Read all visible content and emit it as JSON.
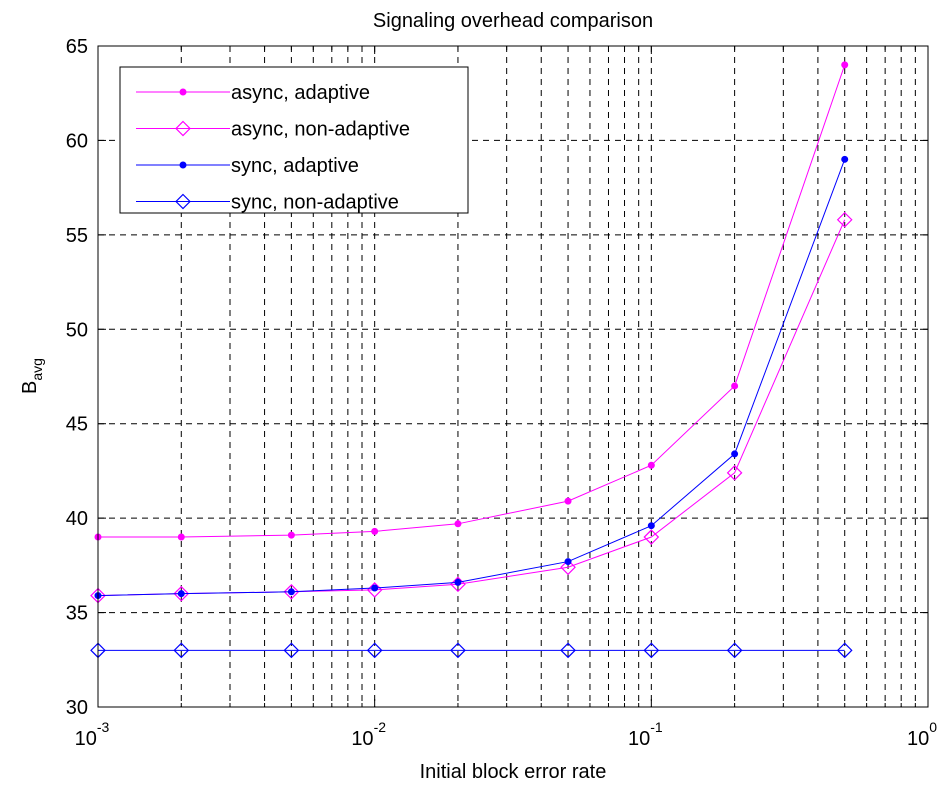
{
  "chart_data": {
    "type": "line",
    "title": "Signaling overhead comparison",
    "xlabel": "Initial block error rate",
    "ylabel": "B",
    "ylabel_sub": "avg",
    "x_scale": "log",
    "xlim": [
      0.001,
      1
    ],
    "ylim": [
      30,
      65
    ],
    "yticks": [
      30,
      35,
      40,
      45,
      50,
      55,
      60,
      65
    ],
    "xticks": [
      {
        "base": "10",
        "exp": "-3"
      },
      {
        "base": "10",
        "exp": "-2"
      },
      {
        "base": "10",
        "exp": "-1"
      },
      {
        "base": "10",
        "exp": "0"
      }
    ],
    "grid": true,
    "legend_position": "top-left",
    "x": [
      0.001,
      0.002,
      0.005,
      0.01,
      0.02,
      0.05,
      0.1,
      0.2,
      0.5
    ],
    "series": [
      {
        "name": "async, adaptive",
        "color": "#ff00ff",
        "marker": "dot",
        "values": [
          39.0,
          39.0,
          39.1,
          39.3,
          39.7,
          40.9,
          42.8,
          47.0,
          64.0
        ]
      },
      {
        "name": "async, non-adaptive",
        "color": "#ff00ff",
        "marker": "diamond",
        "values": [
          35.9,
          36.0,
          36.1,
          36.2,
          36.5,
          37.4,
          39.0,
          42.4,
          55.8
        ]
      },
      {
        "name": "sync, adaptive",
        "color": "#0000ff",
        "marker": "dot",
        "values": [
          35.9,
          36.0,
          36.1,
          36.3,
          36.6,
          37.7,
          39.6,
          43.4,
          59.0
        ]
      },
      {
        "name": "sync, non-adaptive",
        "color": "#0000ff",
        "marker": "diamond",
        "values": [
          33.0,
          33.0,
          33.0,
          33.0,
          33.0,
          33.0,
          33.0,
          33.0,
          33.0
        ]
      }
    ]
  }
}
